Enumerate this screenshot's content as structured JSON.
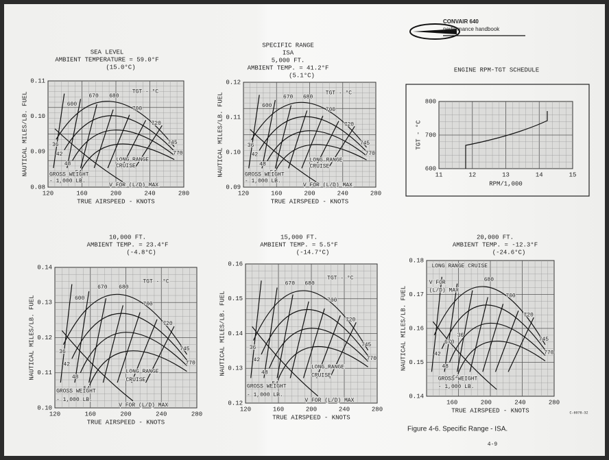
{
  "header": {
    "brand": "CONVAIR 640",
    "subtitle": "performance handbook"
  },
  "title": [
    "SPECIFIC RANGE",
    "ISA"
  ],
  "panels": [
    {
      "title": [
        "SEA LEVEL",
        "AMBIENT TEMPERATURE = 59.0°F",
        "(15.0°C)"
      ],
      "yticks": [
        "0.11",
        "0.10",
        "0.09",
        "0.08"
      ],
      "xticks": [
        "120",
        "160",
        "200",
        "240",
        "280"
      ],
      "ylabel": "NAUTICAL MILES/LB. FUEL",
      "xlabel": "TRUE AIRSPEED - KNOTS",
      "labels": [
        "TGT - °C",
        "600",
        "670",
        "680",
        "700",
        "720",
        "745",
        "770",
        "36",
        "42",
        "48",
        "54",
        "LONG RANGE",
        "CRUISE",
        "GROSS WEIGHT",
        "- 1,000 LB.",
        "V FOR (L/D) MAX"
      ]
    },
    {
      "title": [
        "5,000 FT.",
        "AMBIENT TEMP. = 41.2°F",
        "(5.1°C)"
      ],
      "yticks": [
        "0.12",
        "0.11",
        "0.10",
        "0.09"
      ],
      "xticks": [
        "120",
        "160",
        "200",
        "240",
        "280"
      ],
      "ylabel": "NAUTICAL MILES/LB. FUEL",
      "xlabel": "TRUE AIRSPEED - KNOTS",
      "labels": [
        "TGT - °C",
        "600",
        "670",
        "680",
        "700",
        "720",
        "745",
        "770",
        "36",
        "42",
        "48",
        "54",
        "LONG RANGE",
        "CRUISE",
        "GROSS WEIGHT",
        "- 1,000 LB.",
        "V FOR (L/D) MAX"
      ]
    },
    {
      "title": [
        "10,000 FT.",
        "AMBIENT TEMP. = 23.4°F",
        "(-4.8°C)"
      ],
      "yticks": [
        "0.14",
        "0.13",
        "0.12",
        "0.11",
        "0.10"
      ],
      "xticks": [
        "120",
        "160",
        "200",
        "240",
        "280"
      ],
      "ylabel": "NAUTICAL MILES/LB. FUEL",
      "xlabel": "TRUE AIRSPEED - KNOTS",
      "labels": [
        "TGT - °C",
        "600",
        "670",
        "680",
        "700",
        "720",
        "745",
        "770",
        "36",
        "42",
        "48",
        "54",
        "LONG RANGE",
        "CRUISE",
        "GROSS WEIGHT",
        "- 1,000 LB.",
        "V FOR (L/D) MAX"
      ]
    },
    {
      "title": [
        "15,000 FT.",
        "AMBIENT TEMP. = 5.5°F",
        "(-14.7°C)"
      ],
      "yticks": [
        "0.16",
        "0.15",
        "0.14",
        "0.13",
        "0.12"
      ],
      "xticks": [
        "120",
        "160",
        "200",
        "240",
        "280"
      ],
      "ylabel": "NAUTICAL MILES/LB. FUEL",
      "xlabel": "TRUE AIRSPEED - KNOTS",
      "labels": [
        "TGT - °C",
        "670",
        "680",
        "700",
        "720",
        "745",
        "770",
        "36",
        "42",
        "48",
        "54",
        "LONG RANGE",
        "CRUISE",
        "GROSS WEIGHT",
        "- 1,000 LB.",
        "V FOR (L/D) MAX"
      ]
    },
    {
      "title": [
        "20,000 FT.",
        "AMBIENT TEMP. = -12.3°F",
        "(-24.6°C)"
      ],
      "yticks": [
        "0.18",
        "0.17",
        "0.16",
        "0.15",
        "0.14"
      ],
      "xticks": [
        "160",
        "200",
        "240",
        "280"
      ],
      "ylabel": "NAUTICAL MILES/LB. FUEL",
      "xlabel": "TRUE AIRSPEED - KNOTS",
      "labels": [
        "LONG RANGE CRUISE",
        "V FOR",
        "(L/D) MAX",
        "680",
        "700",
        "720",
        "745",
        "770",
        "670",
        "36",
        "42",
        "48",
        "54",
        "GROSS WEIGHT",
        "- 1,000 LB."
      ]
    }
  ],
  "rpm_chart": {
    "title": "ENGINE RPM-TGT SCHEDULE",
    "yticks": [
      "800",
      "700",
      "600"
    ],
    "xticks": [
      "11",
      "12",
      "13",
      "14",
      "15"
    ],
    "ylabel": "TGT - °C",
    "xlabel": "RPM/1,000"
  },
  "caption": "Figure 4-6.  Specific Range - ISA.",
  "page": "4-9",
  "code": "C-6078-32"
}
